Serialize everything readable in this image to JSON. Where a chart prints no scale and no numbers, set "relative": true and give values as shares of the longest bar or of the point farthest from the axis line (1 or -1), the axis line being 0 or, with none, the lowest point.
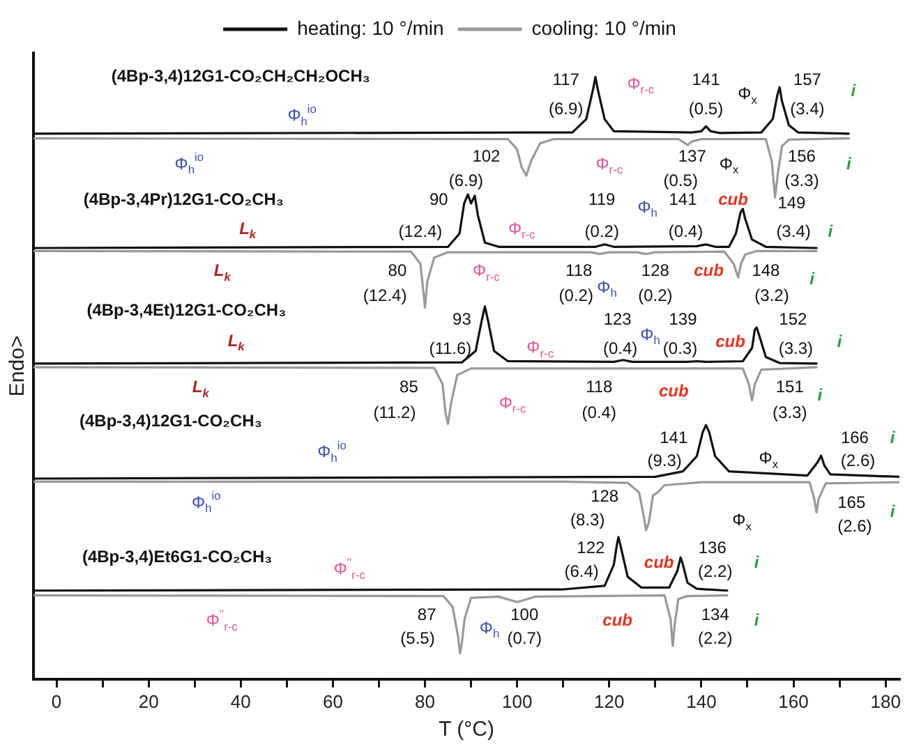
{
  "chart_data": {
    "type": "line",
    "relative": true,
    "xlabel": "T (°C)",
    "ylabel": "Endo>",
    "legend": "top",
    "marker": "none",
    "line_style": "solid",
    "grid": false,
    "xlim": [
      -5,
      183
    ],
    "xticks": [
      0,
      {
        "value": 10,
        "label": null
      },
      20,
      {
        "value": 30,
        "label": null
      },
      40,
      {
        "value": 50,
        "label": null
      },
      60,
      {
        "value": 70,
        "label": null
      },
      80,
      {
        "value": 90,
        "label": null
      },
      100,
      {
        "value": 110,
        "label": null
      },
      120,
      {
        "value": 130,
        "label": null
      },
      140,
      {
        "value": 150,
        "label": null
      },
      160,
      {
        "value": 170,
        "label": null
      },
      180
    ],
    "series": [
      {
        "name": "heating: 10 °/min",
        "color": "#111111",
        "x": [
          -5,
          112,
          115,
          116.5,
          117,
          117.5,
          119,
          121,
          138,
          140,
          141,
          142,
          144,
          153,
          155.5,
          156.5,
          157,
          157.5,
          159,
          161,
          172
        ],
        "values": [
          0.906,
          0.908,
          0.93,
          0.98,
          1,
          0.98,
          0.93,
          0.91,
          0.908,
          0.91,
          0.918,
          0.91,
          0.907,
          0.908,
          0.93,
          0.97,
          0.983,
          0.96,
          0.92,
          0.908,
          0.906
        ]
      },
      {
        "name": "cooling: 10 °/min",
        "color": "#999999",
        "x": [
          -5,
          98,
          100,
          101,
          102,
          103,
          105,
          108,
          135,
          136.5,
          137,
          138,
          140,
          154,
          155.3,
          156,
          156.7,
          157.5,
          159,
          172
        ],
        "values": [
          0.898,
          0.897,
          0.88,
          0.85,
          0.836,
          0.86,
          0.89,
          0.897,
          0.897,
          0.89,
          0.887,
          0.893,
          0.897,
          0.897,
          0.86,
          0.8,
          0.845,
          0.885,
          0.896,
          0.898
        ]
      },
      {
        "color": "#111111",
        "x": [
          -5,
          85,
          87.5,
          88.5,
          89.3,
          90,
          90.8,
          91.5,
          93,
          96,
          117,
          119,
          121,
          139,
          141,
          143,
          146,
          147.5,
          148.5,
          149,
          149.5,
          151,
          154,
          165
        ],
        "values": [
          0.716,
          0.718,
          0.74,
          0.79,
          0.805,
          0.79,
          0.803,
          0.77,
          0.725,
          0.718,
          0.718,
          0.722,
          0.718,
          0.719,
          0.722,
          0.718,
          0.718,
          0.74,
          0.775,
          0.781,
          0.765,
          0.73,
          0.718,
          0.716
        ]
      },
      {
        "color": "#999999",
        "x": [
          -5,
          77,
          79,
          79.7,
          80,
          80.5,
          82,
          85,
          116,
          118,
          120,
          126,
          128,
          130,
          145,
          147,
          148,
          148.6,
          149.5,
          152,
          165
        ],
        "values": [
          0.711,
          0.71,
          0.69,
          0.64,
          0.617,
          0.66,
          0.7,
          0.709,
          0.709,
          0.706,
          0.709,
          0.709,
          0.706,
          0.709,
          0.71,
          0.69,
          0.667,
          0.69,
          0.705,
          0.711,
          0.711
        ]
      },
      {
        "color": "#111111",
        "x": [
          -5,
          88,
          91,
          92.3,
          93,
          93.7,
          95,
          98,
          121,
          123,
          125,
          137,
          139,
          141,
          149,
          151,
          151.6,
          152,
          152.6,
          154,
          157,
          165
        ],
        "values": [
          0.524,
          0.526,
          0.545,
          0.595,
          0.619,
          0.595,
          0.545,
          0.528,
          0.527,
          0.53,
          0.527,
          0.527,
          0.528,
          0.527,
          0.528,
          0.55,
          0.58,
          0.584,
          0.57,
          0.535,
          0.525,
          0.524
        ]
      },
      {
        "color": "#999999",
        "x": [
          -5,
          82,
          83.8,
          84.5,
          85,
          85.7,
          87,
          90,
          149,
          150.3,
          151,
          151.6,
          153,
          165
        ],
        "values": [
          0.518,
          0.517,
          0.49,
          0.44,
          0.424,
          0.46,
          0.505,
          0.516,
          0.516,
          0.49,
          0.463,
          0.49,
          0.514,
          0.518
        ]
      },
      {
        "color": "#111111",
        "x": [
          -5,
          130,
          136,
          139,
          140.3,
          141,
          141.7,
          143,
          146,
          163,
          165.2,
          166,
          166.7,
          168,
          183
        ],
        "values": [
          0.333,
          0.336,
          0.345,
          0.37,
          0.41,
          0.422,
          0.41,
          0.37,
          0.345,
          0.338,
          0.36,
          0.371,
          0.355,
          0.34,
          0.336
        ]
      },
      {
        "color": "#999999",
        "x": [
          -5,
          110,
          124,
          126.5,
          127.5,
          128,
          128.6,
          129.5,
          130.5,
          132,
          140,
          163.5,
          164.5,
          165,
          165.5,
          167,
          183
        ],
        "values": [
          0.328,
          0.328,
          0.326,
          0.31,
          0.27,
          0.247,
          0.26,
          0.305,
          0.31,
          0.322,
          0.327,
          0.327,
          0.3,
          0.277,
          0.3,
          0.325,
          0.327
        ]
      },
      {
        "color": "#111111",
        "x": [
          -5,
          110,
          119,
          121,
          121.7,
          122,
          122.5,
          124,
          127,
          133,
          134.8,
          135.5,
          136,
          137,
          139,
          145.6
        ],
        "values": [
          0.147,
          0.149,
          0.155,
          0.19,
          0.225,
          0.236,
          0.22,
          0.17,
          0.152,
          0.152,
          0.18,
          0.202,
          0.19,
          0.16,
          0.15,
          0.147
        ]
      },
      {
        "color": "#999999",
        "x": [
          -5,
          84,
          86,
          87.2,
          87.6,
          88,
          88.6,
          90,
          96,
          100,
          104,
          132,
          133.3,
          133.8,
          134.2,
          135,
          137,
          145.6
        ],
        "values": [
          0.139,
          0.138,
          0.12,
          0.07,
          0.043,
          0.06,
          0.1,
          0.135,
          0.137,
          0.128,
          0.137,
          0.139,
          0.1,
          0.055,
          0.09,
          0.133,
          0.138,
          0.139
        ]
      }
    ],
    "annotations": [
      "(4Bp-3,4)12G1-CO₂CH₂CH₂OCH₃",
      "117",
      "(6.9)",
      "Φ$_{r-c}$",
      "141",
      "(0.5)",
      "Φ$_{x}$",
      "157",
      "(3.4)",
      "i",
      "Φ$_{h}$$^{io}$",
      "Φ$_{h}$$^{io}$",
      "102",
      "(6.9)",
      "Φ$_{r-c}$",
      "137",
      "(0.5)",
      "Φ$_{x}$",
      "156",
      "(3.3)",
      "i",
      "(4Bp-3,4Pr)12G1-CO₂CH₃",
      "L$_{k}$",
      "90",
      "(12.4)",
      "Φ$_{r-c}$",
      "119",
      "(0.2)",
      "Φ$_{h}$",
      "141",
      "(0.4)",
      "cub",
      "149",
      "(3.4)",
      "i",
      "L$_{k}$",
      "80",
      "(12.4)",
      "Φ$_{r-c}$",
      "118",
      "(0.2)",
      "Φ$_{h}$",
      "128",
      "(0.2)",
      "cub",
      "148",
      "(3.2)",
      "i",
      "(4Bp-3,4Et)12G1-CO₂CH₃",
      "L$_{k}$",
      "93",
      "(11.6)",
      "Φ$_{r-c}$",
      "123",
      "(0.4)",
      "Φ$_{h}$",
      "139",
      "(0.3)",
      "cub",
      "152",
      "(3.3)",
      "i",
      "L$_{k}$",
      "85",
      "(11.2)",
      "Φ$_{r-c}$",
      "118",
      "(0.4)",
      "cub",
      "151",
      "(3.3)",
      "i",
      "(4Bp-3,4)12G1-CO₂CH₃",
      "Φ$_{h}$$^{io}$",
      "141",
      "(9.3)",
      "Φ$_{x}$",
      "166",
      "(2.6)",
      "i",
      "Φ$_{h}$$^{io}$",
      "128",
      "(8.3)",
      "Φ$_{x}$",
      "165",
      "(2.6)",
      "i",
      "(4Bp-3,4)Et6G1-CO₂CH₃",
      "Φ$^{''}$$_{r-c}$",
      "122",
      "(6.4)",
      "cub",
      "136",
      "(2.2)",
      "i",
      "Φ$^{''}$$_{r-c}$",
      "87",
      "(5.5)",
      "Φ$_{h}$",
      "100",
      "(0.7)",
      "cub",
      "134",
      "(2.2)",
      "i"
    ]
  }
}
